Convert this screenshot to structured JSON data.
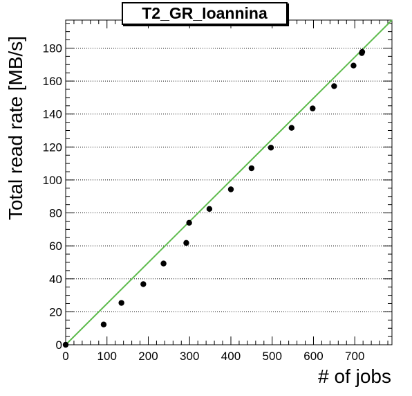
{
  "chart_data": {
    "type": "scatter",
    "title": "T2_GR_Ioannina",
    "xlabel": "# of jobs",
    "ylabel": "Total read rate [MB/s]",
    "xlim": [
      0,
      790
    ],
    "ylim": [
      0,
      197
    ],
    "xticks": [
      0,
      100,
      200,
      300,
      400,
      500,
      600,
      700
    ],
    "yticks": [
      0,
      20,
      40,
      60,
      80,
      100,
      120,
      140,
      160,
      180
    ],
    "grid": "horizontal dotted",
    "series": [
      {
        "points": [
          [
            0,
            0
          ],
          [
            92,
            12.3
          ],
          [
            135,
            25.4
          ],
          [
            188,
            36.8
          ],
          [
            237,
            49.3
          ],
          [
            292,
            61.8
          ],
          [
            299,
            74
          ],
          [
            348,
            82.4
          ],
          [
            400,
            94.3
          ],
          [
            450,
            107.1
          ],
          [
            497,
            119.6
          ],
          [
            547,
            131.6
          ],
          [
            598,
            143.4
          ],
          [
            650,
            156.9
          ],
          [
            697,
            169.4
          ],
          [
            717,
            177
          ],
          [
            718,
            177.7
          ]
        ],
        "color": "#000000"
      }
    ],
    "fit_line": {
      "from": [
        0,
        0
      ],
      "to": [
        790,
        197
      ],
      "color": "#5dbb4c"
    }
  }
}
